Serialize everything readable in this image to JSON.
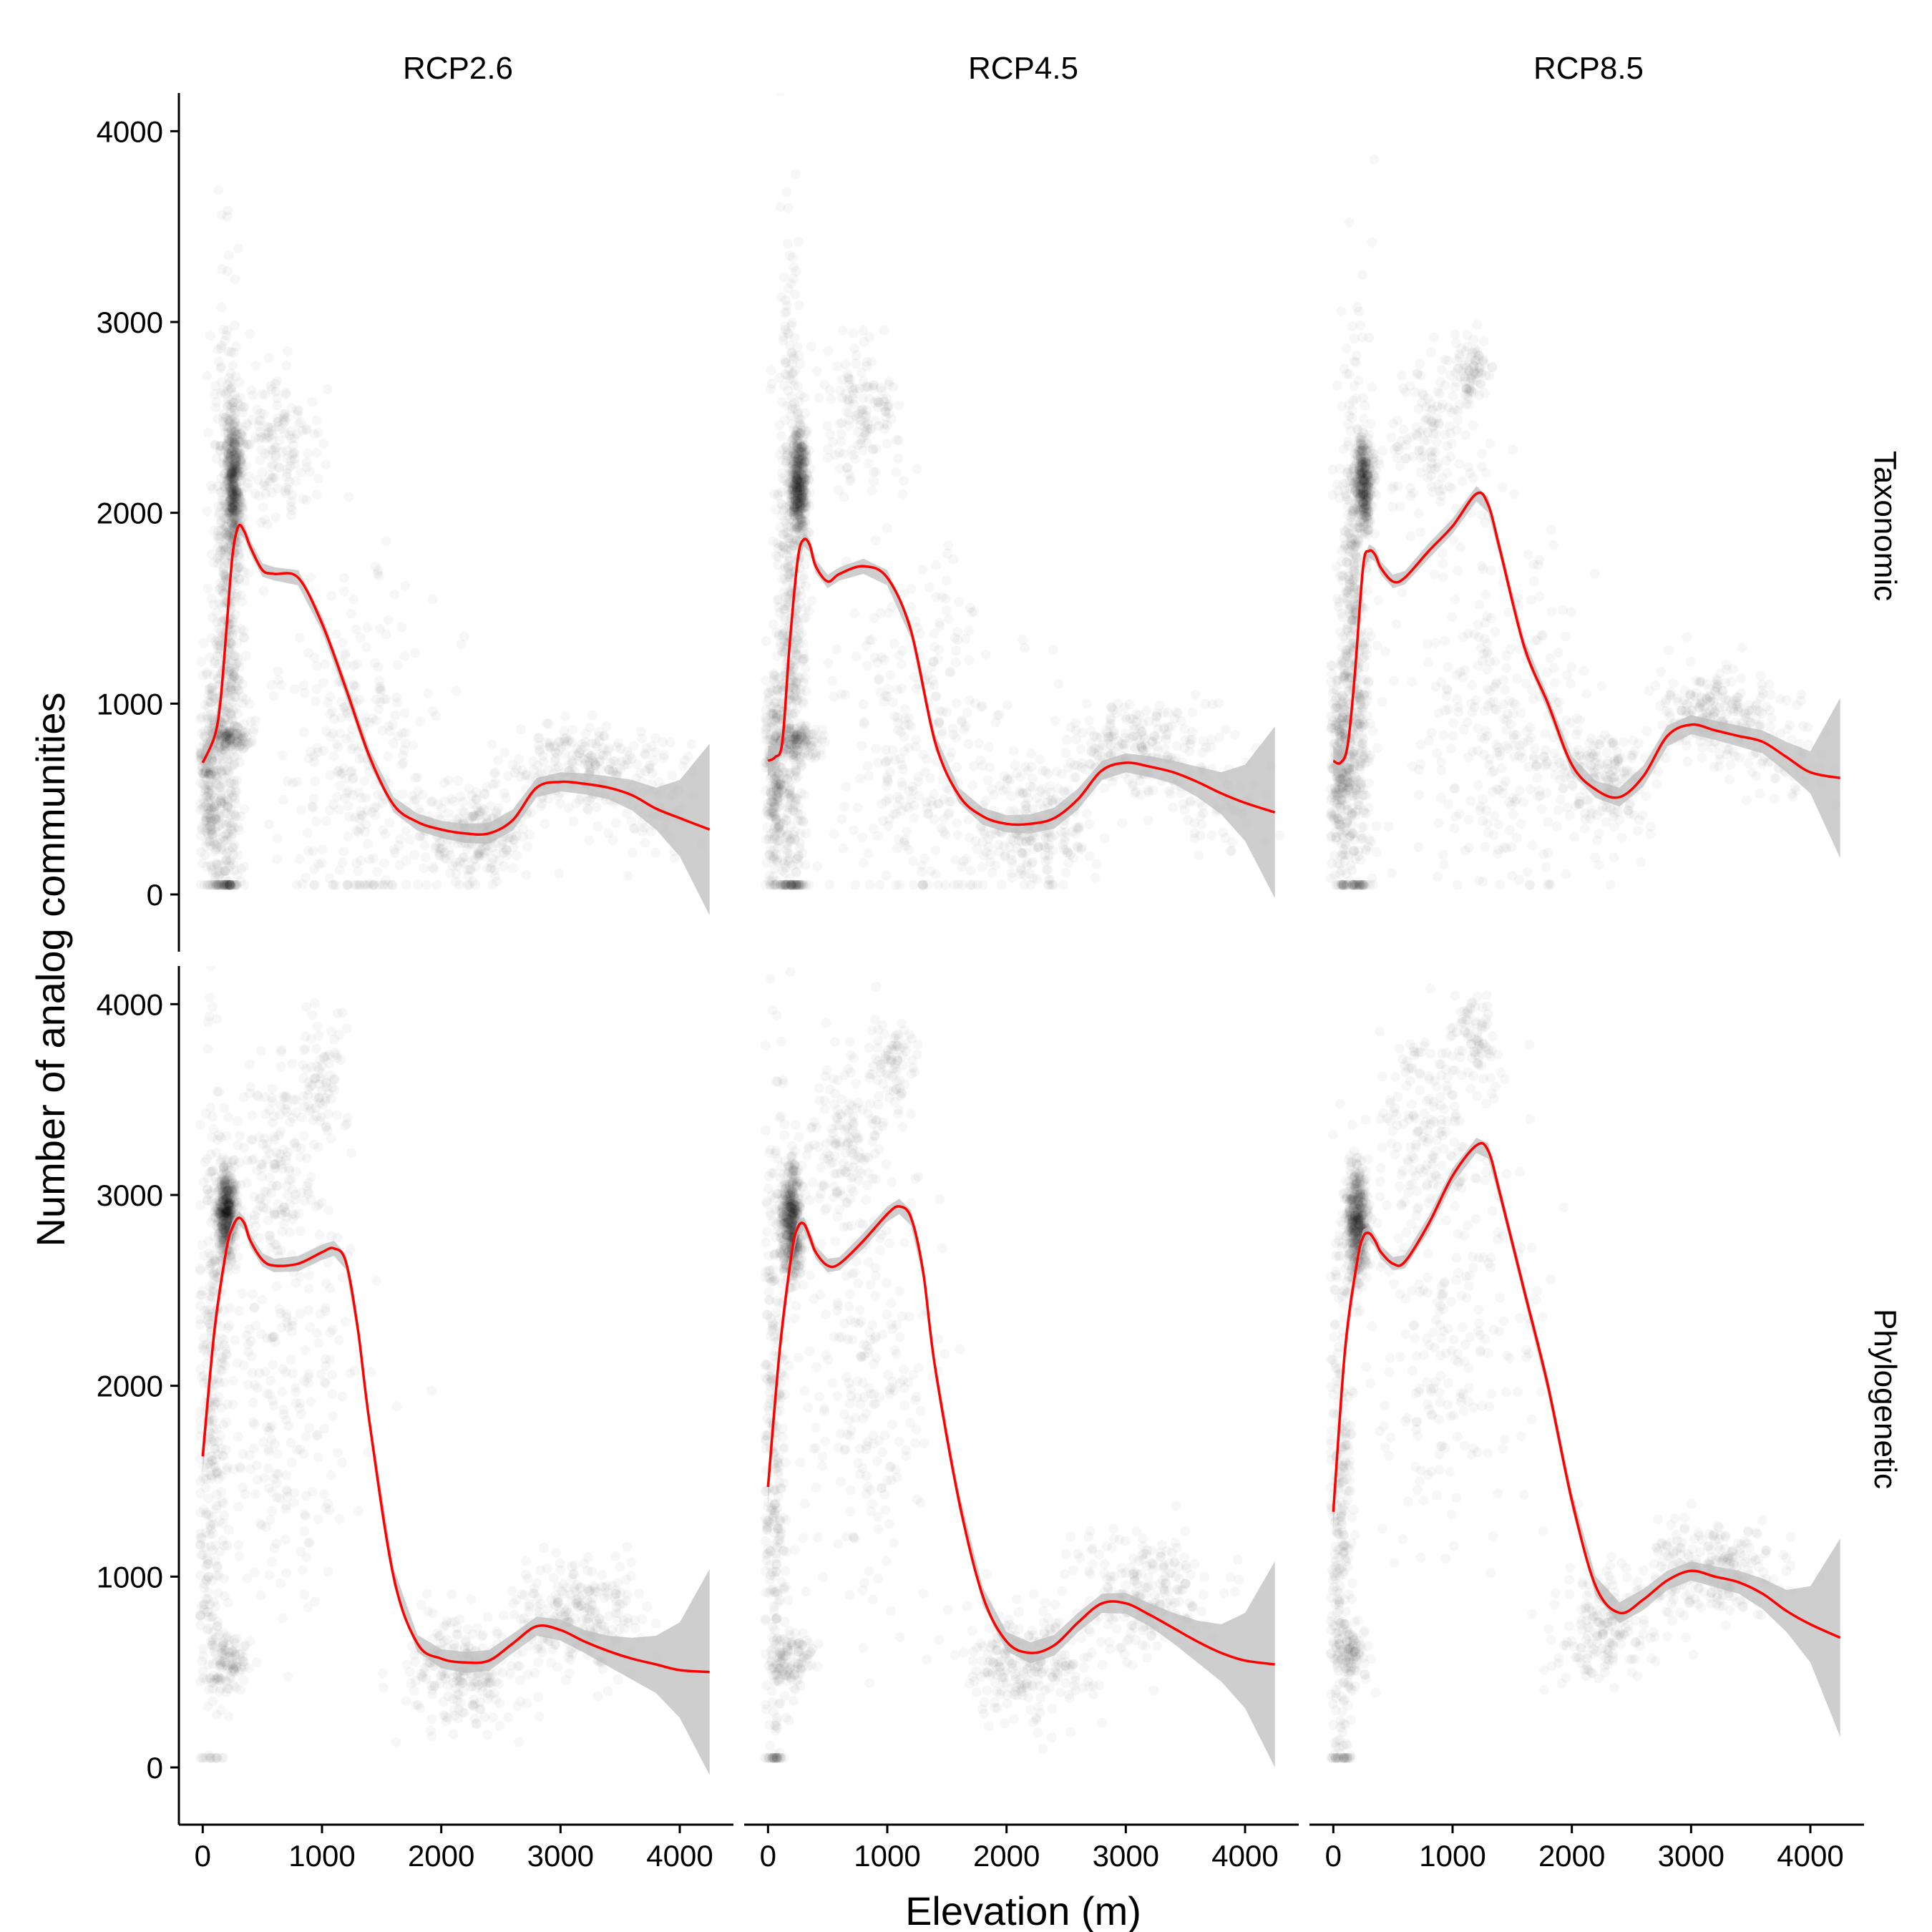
{
  "chart_data": {
    "type": "scatter",
    "xlabel": "Elevation (m)",
    "ylabel": "Number of analog communities",
    "col_labels": [
      "RCP2.6",
      "RCP4.5",
      "RCP8.5"
    ],
    "row_labels": [
      "Taxonomic",
      "Phylogenetic"
    ],
    "x_ticks": [
      0,
      1000,
      2000,
      3000,
      4000
    ],
    "x_tick_labels": [
      "0",
      "1000",
      "2000",
      "3000",
      "4000"
    ],
    "y_ticks": [
      0,
      1000,
      2000,
      3000,
      4000
    ],
    "y_tick_labels": [
      "0",
      "1000",
      "2000",
      "3000",
      "4000"
    ],
    "xlim": [
      -200,
      4450
    ],
    "ylim": [
      -300,
      4200
    ],
    "colors": {
      "smooth": "#ff0000",
      "ribbon": "#bebebe",
      "points": "#000000"
    },
    "panels": [
      {
        "row": "Taxonomic",
        "col": "RCP2.6",
        "smooth": {
          "x": [
            0,
            100,
            150,
            200,
            250,
            300,
            350,
            400,
            500,
            600,
            800,
            1000,
            1200,
            1400,
            1600,
            1800,
            2000,
            2200,
            2400,
            2600,
            2800,
            3000,
            3200,
            3400,
            3600,
            3800,
            4000,
            4250
          ],
          "y": [
            690,
            830,
            1020,
            1400,
            1780,
            1930,
            1900,
            1820,
            1700,
            1680,
            1660,
            1420,
            1080,
            720,
            470,
            380,
            340,
            320,
            320,
            390,
            560,
            590,
            580,
            560,
            520,
            450,
            400,
            340
          ]
        },
        "ribbon_se": [
          80,
          60,
          50,
          40,
          35,
          35,
          35,
          35,
          35,
          35,
          40,
          40,
          40,
          40,
          40,
          45,
          45,
          50,
          55,
          55,
          50,
          50,
          55,
          60,
          80,
          110,
          200,
          450
        ],
        "scatter": [
          {
            "cx": 200,
            "cy": 1200,
            "sx": 70,
            "sy": 900,
            "n": 600,
            "jitter": 0.8
          },
          {
            "cx": 260,
            "cy": 2150,
            "sx": 45,
            "sy": 200,
            "n": 500,
            "jitter": 0.6
          },
          {
            "cx": 60,
            "cy": 600,
            "sx": 60,
            "sy": 300,
            "n": 250,
            "jitter": 0.5
          },
          {
            "cx": 250,
            "cy": 820,
            "sx": 150,
            "sy": 40,
            "n": 120,
            "jitter": 0.3
          },
          {
            "cx": 650,
            "cy": 2350,
            "sx": 250,
            "sy": 180,
            "n": 150,
            "jitter": 0.3
          },
          {
            "cx": 1300,
            "cy": 700,
            "sx": 600,
            "sy": 500,
            "n": 300,
            "jitter": 0.2
          },
          {
            "cx": 2300,
            "cy": 300,
            "sx": 400,
            "sy": 120,
            "n": 250,
            "jitter": 0.3
          },
          {
            "cx": 3200,
            "cy": 650,
            "sx": 500,
            "sy": 120,
            "n": 250,
            "jitter": 0.3
          },
          {
            "cx": 3800,
            "cy": 450,
            "sx": 300,
            "sy": 150,
            "n": 60,
            "jitter": 0.2
          }
        ]
      },
      {
        "row": "Taxonomic",
        "col": "RCP4.5",
        "smooth": {
          "x": [
            0,
            60,
            120,
            180,
            250,
            300,
            350,
            400,
            500,
            600,
            800,
            1000,
            1200,
            1400,
            1600,
            1800,
            2000,
            2200,
            2400,
            2600,
            2800,
            3000,
            3200,
            3400,
            3600,
            3800,
            4000,
            4250
          ],
          "y": [
            700,
            720,
            800,
            1300,
            1760,
            1860,
            1830,
            1720,
            1640,
            1680,
            1720,
            1660,
            1380,
            800,
            520,
            410,
            370,
            370,
            400,
            500,
            650,
            690,
            670,
            640,
            590,
            530,
            480,
            430
          ]
        },
        "ribbon_se": [
          80,
          60,
          50,
          40,
          35,
          35,
          35,
          35,
          35,
          35,
          40,
          40,
          40,
          40,
          40,
          45,
          45,
          50,
          55,
          55,
          50,
          50,
          55,
          60,
          80,
          110,
          200,
          450
        ],
        "scatter": [
          {
            "cx": 200,
            "cy": 1300,
            "sx": 70,
            "sy": 900,
            "n": 600,
            "jitter": 0.8
          },
          {
            "cx": 260,
            "cy": 2150,
            "sx": 45,
            "sy": 150,
            "n": 450,
            "jitter": 0.6
          },
          {
            "cx": 60,
            "cy": 650,
            "sx": 60,
            "sy": 300,
            "n": 250,
            "jitter": 0.5
          },
          {
            "cx": 250,
            "cy": 800,
            "sx": 150,
            "sy": 40,
            "n": 120,
            "jitter": 0.3
          },
          {
            "cx": 750,
            "cy": 2500,
            "sx": 280,
            "sy": 200,
            "n": 150,
            "jitter": 0.3
          },
          {
            "cx": 1300,
            "cy": 800,
            "sx": 600,
            "sy": 500,
            "n": 300,
            "jitter": 0.2
          },
          {
            "cx": 2200,
            "cy": 350,
            "sx": 400,
            "sy": 150,
            "n": 250,
            "jitter": 0.3
          },
          {
            "cx": 3100,
            "cy": 750,
            "sx": 450,
            "sy": 130,
            "n": 250,
            "jitter": 0.3
          },
          {
            "cx": 3800,
            "cy": 500,
            "sx": 300,
            "sy": 150,
            "n": 60,
            "jitter": 0.2
          }
        ]
      },
      {
        "row": "Taxonomic",
        "col": "RCP8.5",
        "smooth": {
          "x": [
            0,
            60,
            120,
            180,
            250,
            300,
            350,
            400,
            500,
            600,
            800,
            1000,
            1200,
            1300,
            1400,
            1600,
            1800,
            2000,
            2200,
            2400,
            2600,
            2800,
            3000,
            3200,
            3400,
            3600,
            3800,
            4000,
            4250
          ],
          "y": [
            700,
            690,
            780,
            1150,
            1720,
            1800,
            1780,
            1710,
            1640,
            1660,
            1800,
            1930,
            2100,
            2040,
            1800,
            1300,
            1000,
            680,
            550,
            510,
            620,
            830,
            890,
            860,
            830,
            800,
            720,
            640,
            610
          ]
        },
        "ribbon_se": [
          80,
          60,
          50,
          40,
          35,
          35,
          35,
          35,
          35,
          35,
          40,
          40,
          40,
          40,
          40,
          40,
          40,
          45,
          45,
          50,
          55,
          55,
          50,
          50,
          55,
          60,
          80,
          110,
          420
        ],
        "scatter": [
          {
            "cx": 180,
            "cy": 1200,
            "sx": 70,
            "sy": 800,
            "n": 600,
            "jitter": 0.8
          },
          {
            "cx": 260,
            "cy": 2150,
            "sx": 45,
            "sy": 120,
            "n": 350,
            "jitter": 0.6
          },
          {
            "cx": 60,
            "cy": 650,
            "sx": 60,
            "sy": 300,
            "n": 250,
            "jitter": 0.5
          },
          {
            "cx": 800,
            "cy": 2400,
            "sx": 300,
            "sy": 250,
            "n": 150,
            "jitter": 0.3
          },
          {
            "cx": 1150,
            "cy": 2750,
            "sx": 100,
            "sy": 100,
            "n": 80,
            "jitter": 0.4
          },
          {
            "cx": 1400,
            "cy": 900,
            "sx": 600,
            "sy": 500,
            "n": 300,
            "jitter": 0.2
          },
          {
            "cx": 2300,
            "cy": 600,
            "sx": 350,
            "sy": 150,
            "n": 200,
            "jitter": 0.3
          },
          {
            "cx": 3200,
            "cy": 950,
            "sx": 400,
            "sy": 120,
            "n": 250,
            "jitter": 0.3
          },
          {
            "cx": 3800,
            "cy": 700,
            "sx": 300,
            "sy": 150,
            "n": 60,
            "jitter": 0.2
          }
        ]
      },
      {
        "row": "Phylogenetic",
        "col": "RCP2.6",
        "smooth": {
          "x": [
            0,
            100,
            200,
            250,
            300,
            350,
            400,
            500,
            600,
            800,
            1000,
            1100,
            1200,
            1300,
            1400,
            1600,
            1800,
            2000,
            2200,
            2400,
            2600,
            2800,
            3000,
            3200,
            3400,
            3600,
            3800,
            4000,
            4250
          ],
          "y": [
            1630,
            2300,
            2720,
            2830,
            2880,
            2850,
            2760,
            2660,
            2630,
            2640,
            2700,
            2720,
            2650,
            2300,
            1800,
            1000,
            650,
            570,
            550,
            560,
            650,
            740,
            720,
            660,
            610,
            570,
            540,
            510,
            500
          ]
        },
        "ribbon_se": [
          90,
          60,
          45,
          40,
          35,
          35,
          35,
          35,
          35,
          40,
          40,
          40,
          40,
          40,
          40,
          45,
          45,
          50,
          55,
          55,
          50,
          50,
          55,
          60,
          80,
          110,
          150,
          250,
          540
        ],
        "scatter": [
          {
            "cx": 200,
            "cy": 2900,
            "sx": 50,
            "sy": 120,
            "n": 500,
            "jitter": 0.7
          },
          {
            "cx": 80,
            "cy": 1800,
            "sx": 80,
            "sy": 900,
            "n": 350,
            "jitter": 0.6
          },
          {
            "cx": 600,
            "cy": 3200,
            "sx": 250,
            "sy": 250,
            "n": 150,
            "jitter": 0.3
          },
          {
            "cx": 1000,
            "cy": 3600,
            "sx": 150,
            "sy": 150,
            "n": 80,
            "jitter": 0.3
          },
          {
            "cx": 700,
            "cy": 2000,
            "sx": 500,
            "sy": 600,
            "n": 250,
            "jitter": 0.2
          },
          {
            "cx": 2200,
            "cy": 500,
            "sx": 400,
            "sy": 150,
            "n": 250,
            "jitter": 0.3
          },
          {
            "cx": 3200,
            "cy": 800,
            "sx": 450,
            "sy": 150,
            "n": 250,
            "jitter": 0.3
          },
          {
            "cx": 200,
            "cy": 550,
            "sx": 150,
            "sy": 80,
            "n": 100,
            "jitter": 0.3
          }
        ]
      },
      {
        "row": "Phylogenetic",
        "col": "RCP4.5",
        "smooth": {
          "x": [
            0,
            100,
            200,
            250,
            300,
            350,
            400,
            500,
            600,
            800,
            1000,
            1100,
            1200,
            1300,
            1400,
            1600,
            1800,
            2000,
            2200,
            2400,
            2600,
            2800,
            3000,
            3200,
            3400,
            3600,
            3800,
            4000,
            4250
          ],
          "y": [
            1470,
            2200,
            2700,
            2830,
            2850,
            2780,
            2700,
            2630,
            2640,
            2760,
            2900,
            2940,
            2880,
            2600,
            2100,
            1400,
            900,
            660,
            600,
            640,
            760,
            860,
            860,
            800,
            730,
            660,
            600,
            560,
            540
          ]
        },
        "ribbon_se": [
          90,
          60,
          45,
          40,
          35,
          35,
          35,
          35,
          35,
          40,
          40,
          40,
          40,
          40,
          40,
          45,
          45,
          50,
          55,
          55,
          50,
          50,
          55,
          60,
          80,
          110,
          150,
          250,
          540
        ],
        "scatter": [
          {
            "cx": 200,
            "cy": 2850,
            "sx": 50,
            "sy": 150,
            "n": 500,
            "jitter": 0.7
          },
          {
            "cx": 60,
            "cy": 1600,
            "sx": 60,
            "sy": 1000,
            "n": 350,
            "jitter": 0.6
          },
          {
            "cx": 650,
            "cy": 3300,
            "sx": 250,
            "sy": 250,
            "n": 150,
            "jitter": 0.3
          },
          {
            "cx": 1050,
            "cy": 3700,
            "sx": 150,
            "sy": 150,
            "n": 80,
            "jitter": 0.3
          },
          {
            "cx": 800,
            "cy": 2000,
            "sx": 500,
            "sy": 600,
            "n": 250,
            "jitter": 0.2
          },
          {
            "cx": 2200,
            "cy": 550,
            "sx": 400,
            "sy": 150,
            "n": 250,
            "jitter": 0.3
          },
          {
            "cx": 3100,
            "cy": 900,
            "sx": 450,
            "sy": 150,
            "n": 250,
            "jitter": 0.3
          },
          {
            "cx": 200,
            "cy": 550,
            "sx": 150,
            "sy": 80,
            "n": 100,
            "jitter": 0.3
          }
        ]
      },
      {
        "row": "Phylogenetic",
        "col": "RCP8.5",
        "smooth": {
          "x": [
            0,
            100,
            200,
            250,
            300,
            350,
            400,
            500,
            600,
            800,
            1000,
            1200,
            1300,
            1400,
            1600,
            1800,
            2000,
            2200,
            2400,
            2600,
            2800,
            3000,
            3200,
            3400,
            3600,
            3800,
            4000,
            4250
          ],
          "y": [
            1340,
            2200,
            2650,
            2780,
            2800,
            2760,
            2700,
            2640,
            2650,
            2850,
            3100,
            3260,
            3230,
            3000,
            2500,
            2000,
            1400,
            950,
            810,
            880,
            980,
            1030,
            1000,
            970,
            910,
            820,
            750,
            680
          ]
        },
        "ribbon_se": [
          90,
          60,
          45,
          40,
          35,
          35,
          35,
          35,
          35,
          40,
          40,
          40,
          40,
          40,
          40,
          45,
          45,
          50,
          55,
          55,
          50,
          50,
          55,
          60,
          80,
          110,
          200,
          520
        ],
        "scatter": [
          {
            "cx": 200,
            "cy": 2850,
            "sx": 50,
            "sy": 150,
            "n": 500,
            "jitter": 0.7
          },
          {
            "cx": 60,
            "cy": 1300,
            "sx": 60,
            "sy": 800,
            "n": 300,
            "jitter": 0.6
          },
          {
            "cx": 750,
            "cy": 3400,
            "sx": 300,
            "sy": 300,
            "n": 150,
            "jitter": 0.3
          },
          {
            "cx": 1200,
            "cy": 3800,
            "sx": 150,
            "sy": 120,
            "n": 80,
            "jitter": 0.3
          },
          {
            "cx": 1000,
            "cy": 2300,
            "sx": 600,
            "sy": 600,
            "n": 250,
            "jitter": 0.2
          },
          {
            "cx": 2300,
            "cy": 750,
            "sx": 350,
            "sy": 150,
            "n": 200,
            "jitter": 0.3
          },
          {
            "cx": 3200,
            "cy": 1050,
            "sx": 450,
            "sy": 120,
            "n": 250,
            "jitter": 0.3
          },
          {
            "cx": 150,
            "cy": 600,
            "sx": 120,
            "sy": 100,
            "n": 100,
            "jitter": 0.3
          }
        ]
      }
    ]
  }
}
